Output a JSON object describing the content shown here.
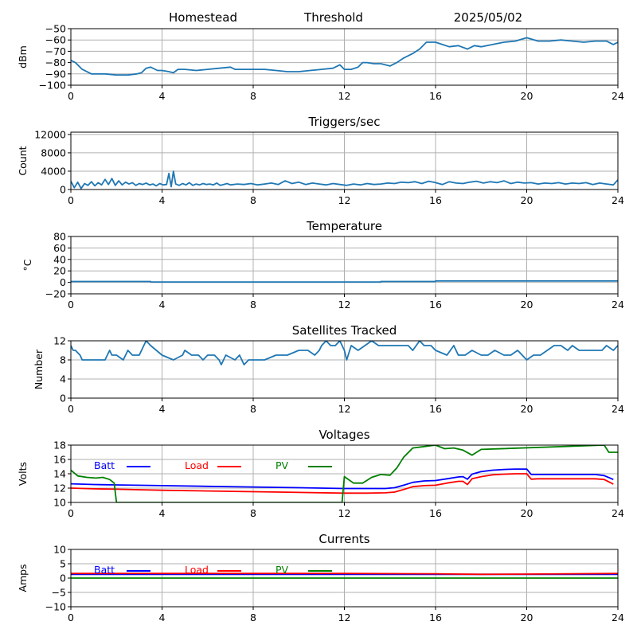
{
  "header": {
    "station": "Homestead",
    "mode": "Threshold",
    "date": "2025/05/02"
  },
  "colors": {
    "series": "#1f77b4",
    "batt": "#0000ff",
    "load": "#ff0000",
    "pv": "#008000",
    "grid": "#b0b0b0"
  },
  "chart_data": [
    {
      "id": "signal",
      "type": "line",
      "title": "",
      "ylabel": "dBm",
      "xlim": [
        0,
        24
      ],
      "xticks": [
        0,
        4,
        8,
        12,
        16,
        20,
        24
      ],
      "ylim": [
        -100,
        -50
      ],
      "yticks": [
        -100,
        -90,
        -80,
        -70,
        -60,
        -50
      ],
      "grid": true,
      "series": [
        {
          "name": "",
          "color": "#1f77b4",
          "x": [
            0,
            0.2,
            0.5,
            0.9,
            1.5,
            2,
            2.5,
            2.9,
            3.1,
            3.3,
            3.5,
            3.8,
            4,
            4.3,
            4.5,
            4.7,
            5,
            5.5,
            6,
            6.5,
            7,
            7.2,
            7.5,
            8,
            8.5,
            9,
            9.5,
            10,
            10.5,
            11,
            11.5,
            11.8,
            12,
            12.3,
            12.6,
            12.8,
            13,
            13.3,
            13.6,
            14,
            14.3,
            14.6,
            15,
            15.3,
            15.6,
            16,
            16.3,
            16.6,
            17,
            17.4,
            17.7,
            18,
            18.5,
            19,
            19.5,
            20,
            20.5,
            21,
            21.5,
            22,
            22.5,
            23,
            23.5,
            23.8,
            24
          ],
          "y": [
            -78,
            -80,
            -86,
            -90,
            -90,
            -91,
            -91,
            -90,
            -89,
            -85,
            -84,
            -87,
            -87,
            -88,
            -89,
            -86,
            -86,
            -87,
            -86,
            -85,
            -84,
            -86,
            -86,
            -86,
            -86,
            -87,
            -88,
            -88,
            -87,
            -86,
            -85,
            -82,
            -86,
            -86,
            -84,
            -80,
            -80,
            -81,
            -81,
            -83,
            -80,
            -76,
            -72,
            -68,
            -62,
            -62,
            -64,
            -66,
            -65,
            -68,
            -65,
            -66,
            -64,
            -62,
            -61,
            -58,
            -61,
            -61,
            -60,
            -61,
            -62,
            -61,
            -61,
            -64,
            -62
          ]
        }
      ]
    },
    {
      "id": "triggers",
      "type": "line",
      "title": "Triggers/sec",
      "ylabel": "Count",
      "xlim": [
        0,
        24
      ],
      "xticks": [
        0,
        4,
        8,
        12,
        16,
        20,
        24
      ],
      "ylim": [
        0,
        12500
      ],
      "yticks": [
        0,
        4000,
        8000,
        12000
      ],
      "grid": true,
      "series": [
        {
          "name": "",
          "color": "#1f77b4",
          "x": [
            0,
            0.15,
            0.3,
            0.45,
            0.6,
            0.75,
            0.9,
            1.05,
            1.2,
            1.35,
            1.5,
            1.65,
            1.8,
            1.95,
            2.1,
            2.25,
            2.4,
            2.55,
            2.7,
            2.85,
            3,
            3.15,
            3.3,
            3.45,
            3.6,
            3.75,
            3.9,
            4.05,
            4.2,
            4.3,
            4.4,
            4.5,
            4.6,
            4.75,
            4.9,
            5.05,
            5.2,
            5.35,
            5.5,
            5.65,
            5.8,
            5.95,
            6.1,
            6.25,
            6.4,
            6.55,
            6.7,
            6.85,
            7,
            7.3,
            7.6,
            7.9,
            8.2,
            8.5,
            8.8,
            9.1,
            9.4,
            9.7,
            10,
            10.3,
            10.6,
            10.9,
            11.2,
            11.5,
            11.8,
            12.1,
            12.4,
            12.7,
            13,
            13.3,
            13.6,
            13.9,
            14.2,
            14.5,
            14.8,
            15.1,
            15.4,
            15.7,
            16,
            16.3,
            16.6,
            16.9,
            17.2,
            17.5,
            17.8,
            18.1,
            18.4,
            18.7,
            19,
            19.3,
            19.6,
            19.9,
            20.2,
            20.5,
            20.8,
            21.1,
            21.4,
            21.7,
            22,
            22.3,
            22.6,
            22.9,
            23.2,
            23.5,
            23.8,
            24
          ],
          "y": [
            1800,
            400,
            1600,
            200,
            1300,
            900,
            1700,
            800,
            1500,
            1000,
            2200,
            1100,
            2400,
            900,
            1900,
            1000,
            1600,
            1200,
            1500,
            900,
            1300,
            1100,
            1400,
            1000,
            1200,
            800,
            1300,
            1000,
            1100,
            3500,
            600,
            4000,
            1200,
            900,
            1300,
            1000,
            1500,
            900,
            1200,
            1000,
            1300,
            1100,
            1200,
            1000,
            1400,
            900,
            1100,
            1300,
            1000,
            1200,
            1100,
            1300,
            1000,
            1200,
            1400,
            1100,
            1900,
            1300,
            1600,
            1100,
            1400,
            1200,
            1000,
            1300,
            1100,
            900,
            1200,
            1000,
            1300,
            1100,
            1200,
            1400,
            1300,
            1600,
            1500,
            1700,
            1300,
            1800,
            1500,
            1100,
            1700,
            1400,
            1300,
            1600,
            1800,
            1400,
            1700,
            1500,
            1900,
            1300,
            1600,
            1400,
            1500,
            1200,
            1400,
            1300,
            1500,
            1200,
            1400,
            1300,
            1500,
            1100,
            1400,
            1200,
            1000,
            2100
          ]
        }
      ]
    },
    {
      "id": "temperature",
      "type": "line",
      "title": "Temperature",
      "ylabel": "°C",
      "xlim": [
        0,
        24
      ],
      "xticks": [
        0,
        4,
        8,
        12,
        16,
        20,
        24
      ],
      "ylim": [
        -20,
        80
      ],
      "yticks": [
        -20,
        0,
        20,
        40,
        60,
        80
      ],
      "grid": true,
      "series": [
        {
          "name": "",
          "color": "#1f77b4",
          "x": [
            0,
            3.5,
            3.5,
            13.6,
            13.6,
            16,
            16,
            24
          ],
          "y": [
            1.5,
            1.5,
            0.5,
            0.5,
            1.5,
            1.5,
            2.5,
            2.5
          ]
        }
      ]
    },
    {
      "id": "satellites",
      "type": "line",
      "title": "Satellites Tracked",
      "ylabel": "Number",
      "xlim": [
        0,
        24
      ],
      "xticks": [
        0,
        4,
        8,
        12,
        16,
        20,
        24
      ],
      "ylim": [
        0,
        12
      ],
      "yticks": [
        0,
        4,
        8,
        12
      ],
      "grid": true,
      "series": [
        {
          "name": "",
          "color": "#1f77b4",
          "x": [
            0,
            0.1,
            0.2,
            0.4,
            0.5,
            0.8,
            1,
            1.5,
            1.7,
            1.8,
            2,
            2.3,
            2.5,
            2.7,
            3,
            3.2,
            3.3,
            3.5,
            4,
            4.5,
            4.9,
            5,
            5.3,
            5.6,
            5.8,
            6,
            6.3,
            6.5,
            6.6,
            6.8,
            7.2,
            7.4,
            7.6,
            7.8,
            8,
            8.5,
            9,
            9.5,
            10,
            10.4,
            10.7,
            10.9,
            11,
            11.2,
            11.4,
            11.6,
            11.8,
            12,
            12.1,
            12.3,
            12.6,
            12.9,
            13.2,
            13.5,
            13.8,
            14,
            14.2,
            14.5,
            14.8,
            15,
            15.3,
            15.5,
            15.8,
            16,
            16.5,
            16.8,
            17,
            17.3,
            17.6,
            18,
            18.3,
            18.6,
            19,
            19.3,
            19.6,
            20,
            20.3,
            20.6,
            20.9,
            21.2,
            21.5,
            21.8,
            22,
            22.3,
            22.6,
            23,
            23.3,
            23.5,
            23.8,
            24
          ],
          "y": [
            11,
            10,
            10,
            9,
            8,
            8,
            8,
            8,
            10,
            9,
            9,
            8,
            10,
            9,
            9,
            11,
            12,
            11,
            9,
            8,
            9,
            10,
            9,
            9,
            8,
            9,
            9,
            8,
            7,
            9,
            8,
            9,
            7,
            8,
            8,
            8,
            9,
            9,
            10,
            10,
            9,
            10,
            11,
            12,
            11,
            11,
            12,
            10,
            8,
            11,
            10,
            11,
            12,
            11,
            11,
            11,
            11,
            11,
            11,
            10,
            12,
            11,
            11,
            10,
            9,
            11,
            9,
            9,
            10,
            9,
            9,
            10,
            9,
            9,
            10,
            8,
            9,
            9,
            10,
            11,
            11,
            10,
            11,
            10,
            10,
            10,
            10,
            11,
            10,
            11
          ]
        }
      ]
    },
    {
      "id": "voltages",
      "type": "line",
      "title": "Voltages",
      "ylabel": "Volts",
      "xlim": [
        0,
        24
      ],
      "xticks": [
        0,
        4,
        8,
        12,
        16,
        20,
        24
      ],
      "ylim": [
        10,
        18
      ],
      "yticks": [
        10,
        12,
        14,
        16,
        18
      ],
      "grid": true,
      "legend": "top-left",
      "series": [
        {
          "name": "Batt",
          "color": "#0000ff",
          "x": [
            0,
            1,
            2,
            4,
            6,
            8,
            10,
            12,
            13,
            13.8,
            14.2,
            14.6,
            15,
            15.5,
            16,
            16.5,
            17,
            17.2,
            17.4,
            17.6,
            18,
            18.5,
            19,
            19.5,
            20,
            20.2,
            20.5,
            21,
            22,
            23,
            23.4,
            23.8
          ],
          "y": [
            12.6,
            12.5,
            12.45,
            12.35,
            12.25,
            12.15,
            12.05,
            11.95,
            11.95,
            11.95,
            12.05,
            12.4,
            12.8,
            13.0,
            13.05,
            13.3,
            13.55,
            13.6,
            13.25,
            13.95,
            14.3,
            14.5,
            14.6,
            14.65,
            14.65,
            13.9,
            13.9,
            13.9,
            13.9,
            13.9,
            13.75,
            13.2
          ]
        },
        {
          "name": "Load",
          "color": "#ff0000",
          "x": [
            0,
            1,
            2,
            4,
            6,
            8,
            10,
            12,
            13,
            13.8,
            14.2,
            14.6,
            15,
            15.5,
            16,
            16.5,
            17,
            17.2,
            17.4,
            17.6,
            18,
            18.5,
            19,
            19.5,
            20,
            20.2,
            20.5,
            21,
            22,
            23,
            23.4,
            23.8
          ],
          "y": [
            12.0,
            11.9,
            11.85,
            11.7,
            11.6,
            11.5,
            11.4,
            11.3,
            11.3,
            11.35,
            11.45,
            11.8,
            12.2,
            12.35,
            12.4,
            12.7,
            12.95,
            12.95,
            12.5,
            13.3,
            13.6,
            13.85,
            13.95,
            14.0,
            14.0,
            13.25,
            13.3,
            13.3,
            13.3,
            13.3,
            13.2,
            12.55
          ]
        },
        {
          "name": "PV",
          "color": "#008000",
          "x": [
            0,
            0.3,
            0.7,
            1.1,
            1.4,
            1.7,
            1.9,
            2.0,
            11.9,
            12.0,
            12.4,
            12.8,
            13.2,
            13.6,
            14,
            14.3,
            14.6,
            15,
            15.5,
            16,
            16.4,
            16.8,
            17.2,
            17.6,
            18,
            23.4,
            23.6,
            24
          ],
          "y": [
            14.5,
            13.7,
            13.5,
            13.4,
            13.5,
            13.2,
            12.7,
            10.0,
            10.0,
            13.6,
            12.7,
            12.7,
            13.5,
            13.9,
            13.8,
            14.8,
            16.3,
            17.6,
            17.8,
            18.0,
            17.5,
            17.6,
            17.3,
            16.6,
            17.4,
            18.0,
            17.0,
            17.0
          ]
        }
      ]
    },
    {
      "id": "currents",
      "type": "line",
      "title": "Currents",
      "ylabel": "Amps",
      "xlim": [
        0,
        24
      ],
      "xticks": [
        0,
        4,
        8,
        12,
        16,
        20,
        24
      ],
      "ylim": [
        -10,
        10
      ],
      "yticks": [
        -10,
        -5,
        0,
        5,
        10
      ],
      "grid": true,
      "legend": "top-left",
      "series": [
        {
          "name": "Batt",
          "color": "#0000ff",
          "x": [
            0,
            24
          ],
          "y": [
            1.3,
            1.3
          ]
        },
        {
          "name": "Load",
          "color": "#ff0000",
          "x": [
            0,
            12,
            16,
            18,
            20,
            24
          ],
          "y": [
            1.6,
            1.6,
            1.5,
            1.3,
            1.4,
            1.6
          ]
        },
        {
          "name": "PV",
          "color": "#008000",
          "x": [
            0,
            24
          ],
          "y": [
            0,
            0
          ]
        }
      ]
    }
  ]
}
